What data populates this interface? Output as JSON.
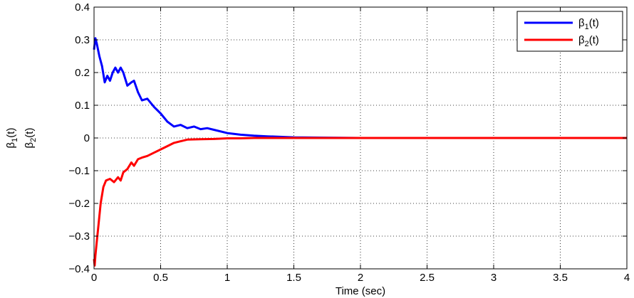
{
  "chart_data": {
    "type": "line",
    "title": "",
    "xlabel": "Time (sec)",
    "ylabel_lines": [
      {
        "symbol": "β",
        "sub": "1",
        "suffix": "(t)"
      },
      {
        "symbol": "β",
        "sub": "2",
        "suffix": "(t)"
      }
    ],
    "xlim": [
      0,
      4
    ],
    "ylim": [
      -0.4,
      0.4
    ],
    "x_ticks": [
      "0",
      "0.5",
      "1",
      "1.5",
      "2",
      "2.5",
      "3",
      "3.5",
      "4"
    ],
    "y_ticks": [
      "−0.4",
      "−0.3",
      "−0.2",
      "−0.1",
      "0",
      "0.1",
      "0.2",
      "0.3",
      "0.4"
    ],
    "grid": true,
    "legend_position": "top-right",
    "series": [
      {
        "name": "β1(t)",
        "legend": {
          "symbol": "β",
          "sub": "1",
          "suffix": "(t)"
        },
        "color": "#0000ff",
        "x": [
          0,
          0.01,
          0.02,
          0.04,
          0.06,
          0.08,
          0.1,
          0.12,
          0.14,
          0.16,
          0.18,
          0.2,
          0.22,
          0.25,
          0.28,
          0.3,
          0.33,
          0.36,
          0.4,
          0.45,
          0.5,
          0.55,
          0.6,
          0.65,
          0.7,
          0.75,
          0.8,
          0.85,
          0.9,
          1.0,
          1.1,
          1.2,
          1.3,
          1.5,
          1.7,
          2.0,
          2.5,
          3.0,
          3.5,
          4.0
        ],
        "y": [
          0.27,
          0.305,
          0.29,
          0.25,
          0.22,
          0.17,
          0.19,
          0.175,
          0.2,
          0.215,
          0.2,
          0.215,
          0.2,
          0.16,
          0.17,
          0.175,
          0.14,
          0.115,
          0.12,
          0.095,
          0.075,
          0.05,
          0.035,
          0.04,
          0.03,
          0.035,
          0.027,
          0.03,
          0.025,
          0.015,
          0.01,
          0.007,
          0.005,
          0.002,
          0.001,
          0.0,
          0.0,
          0.0,
          0.0,
          0.0
        ]
      },
      {
        "name": "β2(t)",
        "legend": {
          "symbol": "β",
          "sub": "2",
          "suffix": "(t)"
        },
        "color": "#ff0000",
        "x": [
          0,
          0.005,
          0.01,
          0.02,
          0.03,
          0.05,
          0.07,
          0.09,
          0.12,
          0.15,
          0.18,
          0.2,
          0.22,
          0.25,
          0.28,
          0.3,
          0.33,
          0.36,
          0.4,
          0.45,
          0.5,
          0.55,
          0.6,
          0.65,
          0.7,
          0.8,
          0.9,
          1.0,
          1.1,
          1.2,
          1.5,
          2.0,
          2.5,
          3.0,
          3.5,
          4.0
        ],
        "y": [
          -0.37,
          -0.39,
          -0.36,
          -0.32,
          -0.28,
          -0.2,
          -0.15,
          -0.13,
          -0.125,
          -0.135,
          -0.12,
          -0.13,
          -0.105,
          -0.095,
          -0.075,
          -0.085,
          -0.065,
          -0.06,
          -0.055,
          -0.045,
          -0.035,
          -0.025,
          -0.015,
          -0.01,
          -0.005,
          -0.004,
          -0.003,
          -0.001,
          -0.001,
          0.0,
          0.0,
          0.0,
          0.0,
          0.0,
          0.0,
          0.0
        ]
      }
    ]
  }
}
